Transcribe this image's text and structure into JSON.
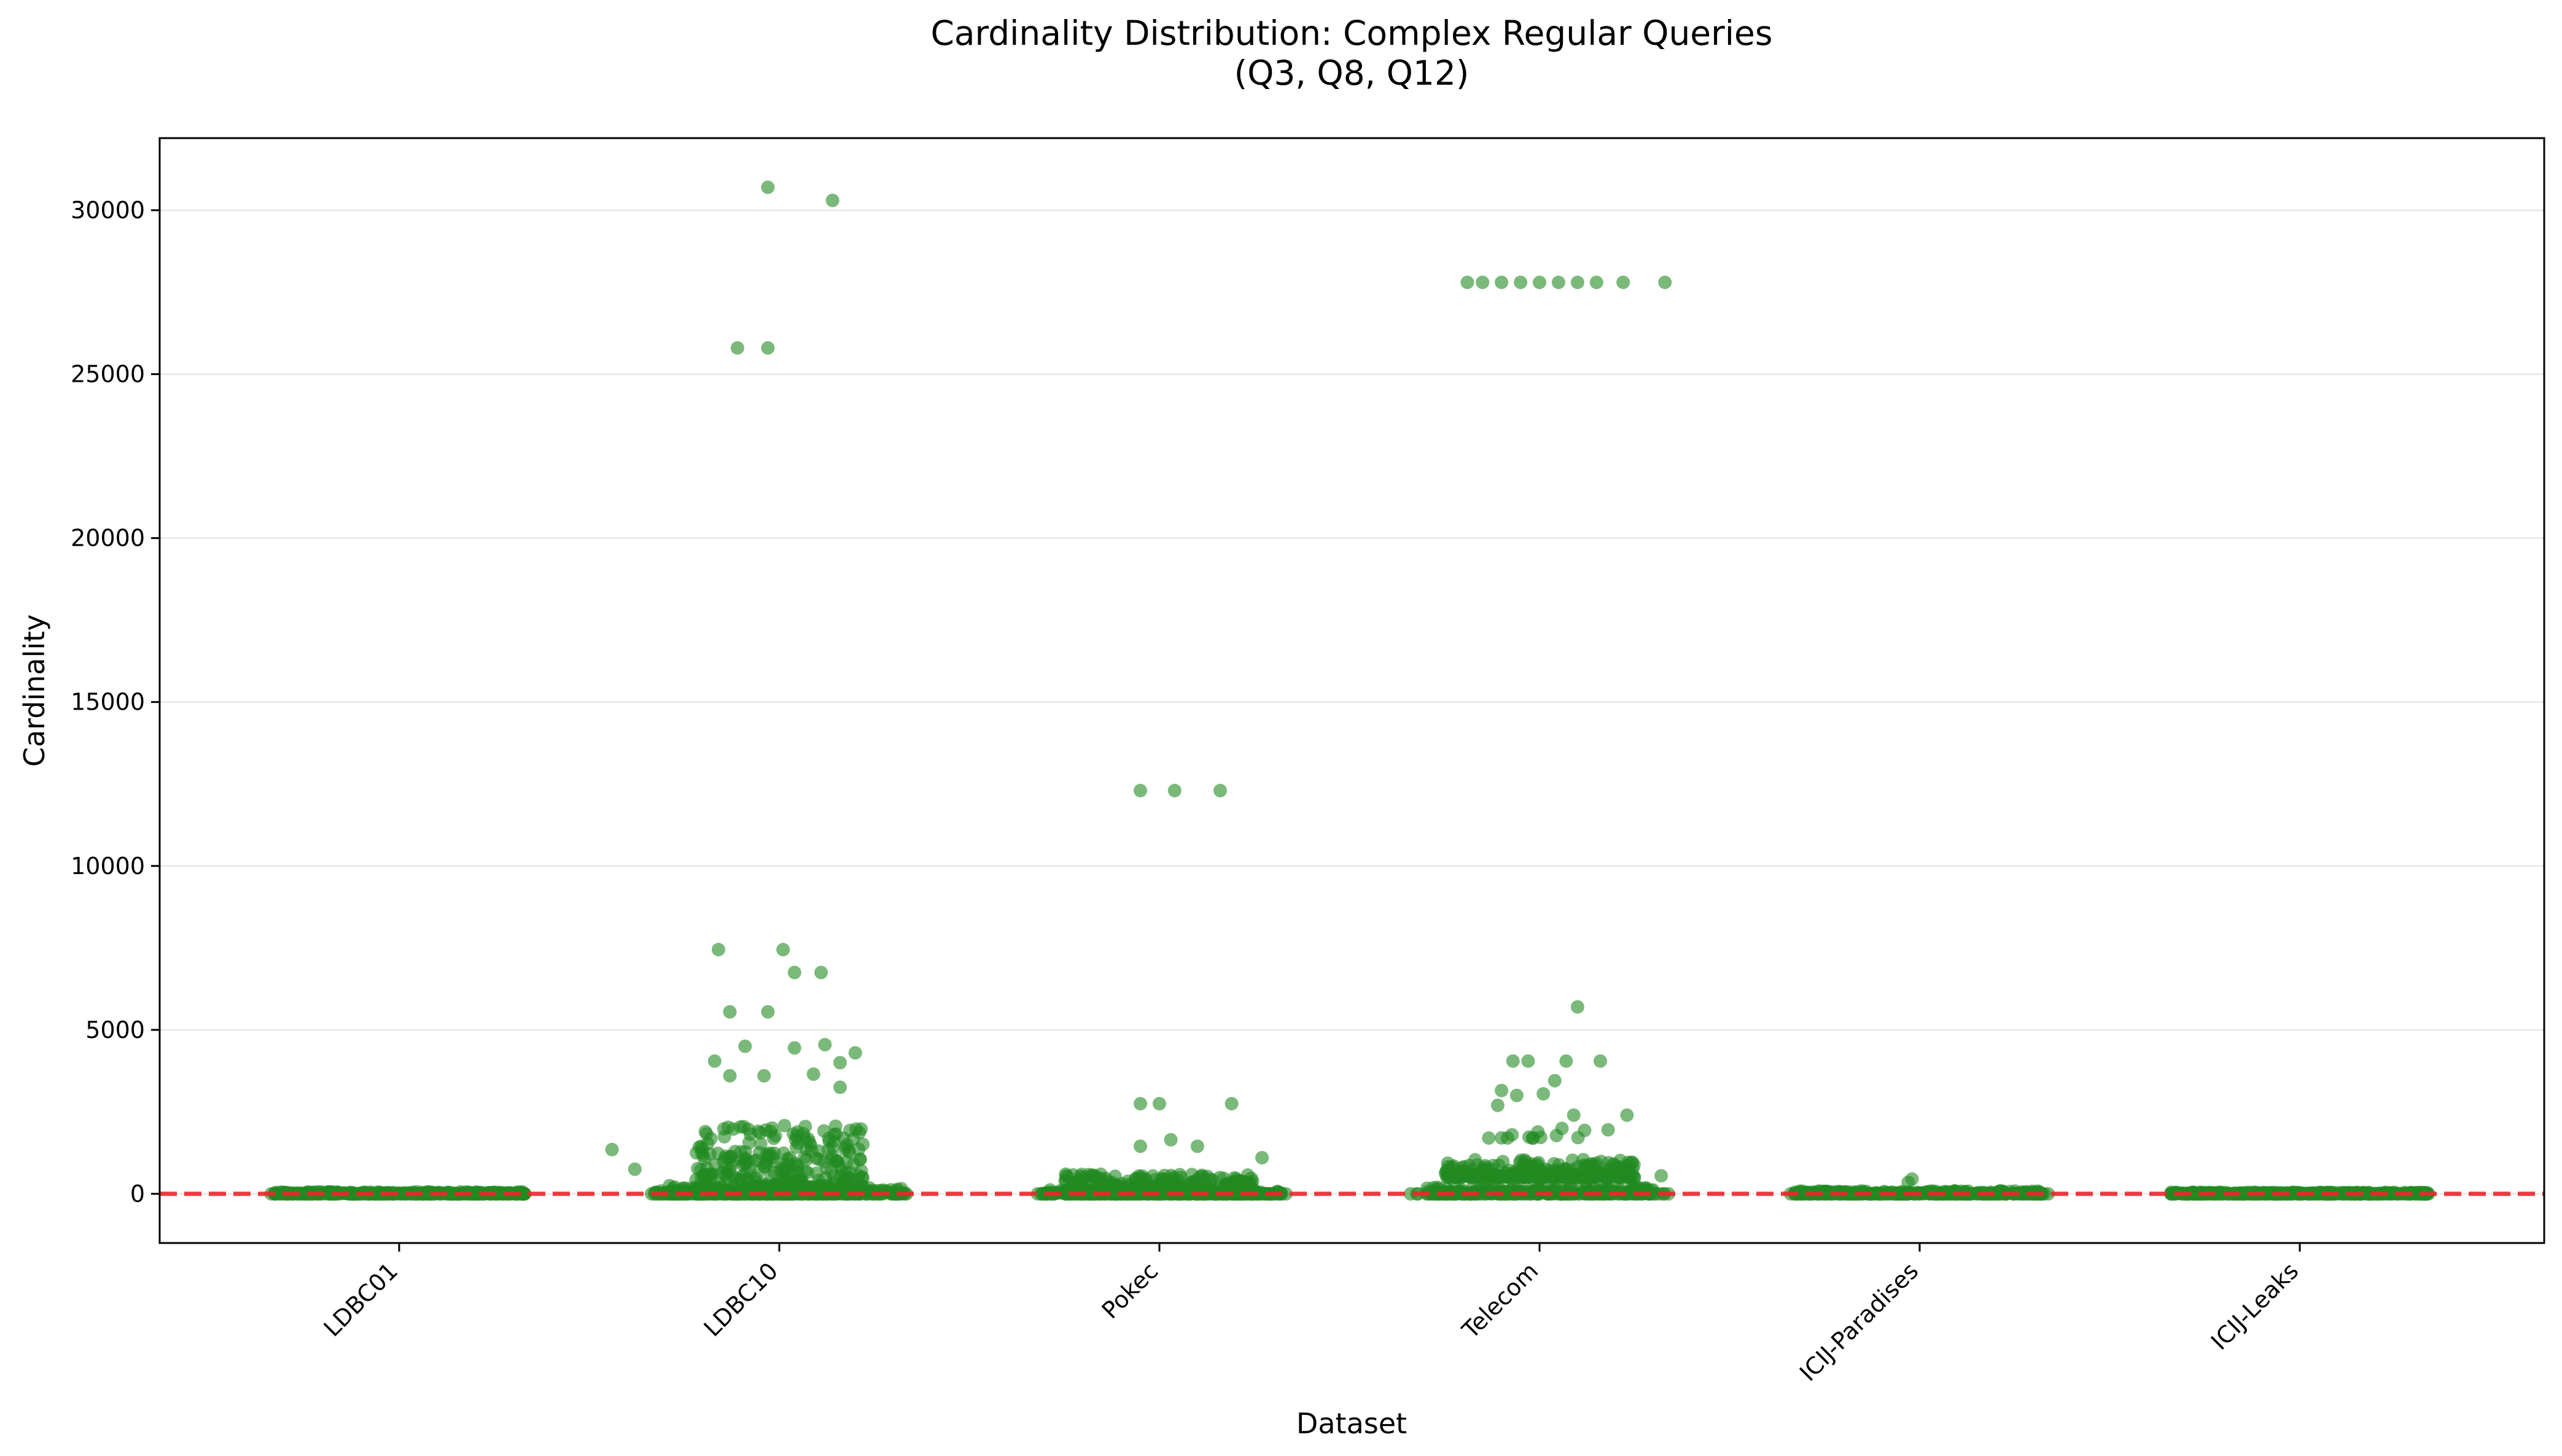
{
  "chart_data": {
    "type": "scatter",
    "title": "Cardinality Distribution: Complex Regular Queries",
    "subtitle": "(Q3, Q8, Q12)",
    "xlabel": "Dataset",
    "ylabel": "Cardinality",
    "categories": [
      "LDBC01",
      "LDBC10",
      "Pokec",
      "Telecom",
      "ICIJ-Paradises",
      "ICIJ-Leaks"
    ],
    "ylim": [
      -1500,
      32200
    ],
    "yticks": [
      0,
      5000,
      10000,
      15000,
      20000,
      25000,
      30000
    ],
    "grid": "y",
    "point_color": "#228b22",
    "reference_line": {
      "value": 0,
      "color": "#e8282b",
      "style": "dashed"
    },
    "notable_points": [
      {
        "dataset": "LDBC10",
        "offset": -0.03,
        "y": 30700
      },
      {
        "dataset": "LDBC10",
        "offset": 0.14,
        "y": 30300
      },
      {
        "dataset": "LDBC10",
        "offset": -0.11,
        "y": 25800
      },
      {
        "dataset": "LDBC10",
        "offset": -0.03,
        "y": 25800
      },
      {
        "dataset": "LDBC10",
        "offset": -0.16,
        "y": 7450
      },
      {
        "dataset": "LDBC10",
        "offset": 0.01,
        "y": 7450
      },
      {
        "dataset": "LDBC10",
        "offset": 0.04,
        "y": 6750
      },
      {
        "dataset": "LDBC10",
        "offset": 0.11,
        "y": 6750
      },
      {
        "dataset": "LDBC10",
        "offset": -0.13,
        "y": 5550
      },
      {
        "dataset": "LDBC10",
        "offset": -0.03,
        "y": 5550
      },
      {
        "dataset": "LDBC10",
        "offset": 0.12,
        "y": 4550
      },
      {
        "dataset": "LDBC10",
        "offset": -0.09,
        "y": 4500
      },
      {
        "dataset": "LDBC10",
        "offset": 0.04,
        "y": 4450
      },
      {
        "dataset": "LDBC10",
        "offset": 0.2,
        "y": 4300
      },
      {
        "dataset": "LDBC10",
        "offset": -0.17,
        "y": 4050
      },
      {
        "dataset": "LDBC10",
        "offset": 0.16,
        "y": 4000
      },
      {
        "dataset": "LDBC10",
        "offset": -0.13,
        "y": 3600
      },
      {
        "dataset": "LDBC10",
        "offset": 0.09,
        "y": 3650
      },
      {
        "dataset": "LDBC10",
        "offset": -0.04,
        "y": 3600
      },
      {
        "dataset": "LDBC10",
        "offset": 0.16,
        "y": 3250
      },
      {
        "dataset": "LDBC10",
        "offset": -0.44,
        "y": 1350
      },
      {
        "dataset": "LDBC10",
        "offset": -0.38,
        "y": 750
      },
      {
        "dataset": "Pokec",
        "offset": -0.05,
        "y": 12300
      },
      {
        "dataset": "Pokec",
        "offset": 0.04,
        "y": 12300
      },
      {
        "dataset": "Pokec",
        "offset": 0.16,
        "y": 12300
      },
      {
        "dataset": "Pokec",
        "offset": -0.05,
        "y": 2750
      },
      {
        "dataset": "Pokec",
        "offset": 0.0,
        "y": 2750
      },
      {
        "dataset": "Pokec",
        "offset": 0.19,
        "y": 2750
      },
      {
        "dataset": "Pokec",
        "offset": -0.05,
        "y": 1450
      },
      {
        "dataset": "Pokec",
        "offset": 0.1,
        "y": 1450
      },
      {
        "dataset": "Pokec",
        "offset": 0.27,
        "y": 1100
      },
      {
        "dataset": "Pokec",
        "offset": 0.03,
        "y": 1650
      },
      {
        "dataset": "Telecom",
        "offset": -0.19,
        "y": 27800
      },
      {
        "dataset": "Telecom",
        "offset": -0.15,
        "y": 27800
      },
      {
        "dataset": "Telecom",
        "offset": -0.1,
        "y": 27800
      },
      {
        "dataset": "Telecom",
        "offset": -0.05,
        "y": 27800
      },
      {
        "dataset": "Telecom",
        "offset": 0.0,
        "y": 27800
      },
      {
        "dataset": "Telecom",
        "offset": 0.05,
        "y": 27800
      },
      {
        "dataset": "Telecom",
        "offset": 0.1,
        "y": 27800
      },
      {
        "dataset": "Telecom",
        "offset": 0.15,
        "y": 27800
      },
      {
        "dataset": "Telecom",
        "offset": 0.22,
        "y": 27800
      },
      {
        "dataset": "Telecom",
        "offset": 0.33,
        "y": 27800
      },
      {
        "dataset": "Telecom",
        "offset": 0.1,
        "y": 5700
      },
      {
        "dataset": "Telecom",
        "offset": -0.07,
        "y": 4050
      },
      {
        "dataset": "Telecom",
        "offset": -0.03,
        "y": 4050
      },
      {
        "dataset": "Telecom",
        "offset": 0.07,
        "y": 4050
      },
      {
        "dataset": "Telecom",
        "offset": 0.16,
        "y": 4050
      },
      {
        "dataset": "Telecom",
        "offset": 0.04,
        "y": 3450
      },
      {
        "dataset": "Telecom",
        "offset": -0.1,
        "y": 3150
      },
      {
        "dataset": "Telecom",
        "offset": -0.06,
        "y": 3000
      },
      {
        "dataset": "Telecom",
        "offset": 0.01,
        "y": 3050
      },
      {
        "dataset": "Telecom",
        "offset": -0.11,
        "y": 2700
      },
      {
        "dataset": "Telecom",
        "offset": 0.09,
        "y": 2400
      },
      {
        "dataset": "Telecom",
        "offset": 0.23,
        "y": 2400
      },
      {
        "dataset": "Telecom",
        "offset": -0.24,
        "y": 550
      },
      {
        "dataset": "Telecom",
        "offset": 0.32,
        "y": 550
      },
      {
        "dataset": "ICIJ-Paradises",
        "offset": -0.02,
        "y": 450
      },
      {
        "dataset": "ICIJ-Paradises",
        "offset": -0.03,
        "y": 350
      }
    ],
    "clusters": [
      {
        "dataset": "LDBC10",
        "min": 0,
        "max": 2100,
        "spread": 0.22,
        "count": 420
      },
      {
        "dataset": "LDBC10",
        "min": 0,
        "max": 250,
        "spread": 0.33,
        "count": 260
      },
      {
        "dataset": "Pokec",
        "min": 0,
        "max": 600,
        "spread": 0.25,
        "count": 380
      },
      {
        "dataset": "Pokec",
        "min": 0,
        "max": 120,
        "spread": 0.32,
        "count": 200
      },
      {
        "dataset": "Telecom",
        "min": 500,
        "max": 1050,
        "spread": 0.25,
        "count": 300
      },
      {
        "dataset": "Telecom",
        "min": 1700,
        "max": 2000,
        "spread": 0.2,
        "count": 14
      },
      {
        "dataset": "Telecom",
        "min": 0,
        "max": 200,
        "spread": 0.3,
        "count": 260
      },
      {
        "dataset": "LDBC01",
        "min": 0,
        "max": 60,
        "spread": 0.33,
        "count": 320
      },
      {
        "dataset": "ICIJ-Paradises",
        "min": 0,
        "max": 90,
        "spread": 0.33,
        "count": 340
      },
      {
        "dataset": "ICIJ-Leaks",
        "min": 0,
        "max": 50,
        "spread": 0.34,
        "count": 360
      }
    ]
  }
}
